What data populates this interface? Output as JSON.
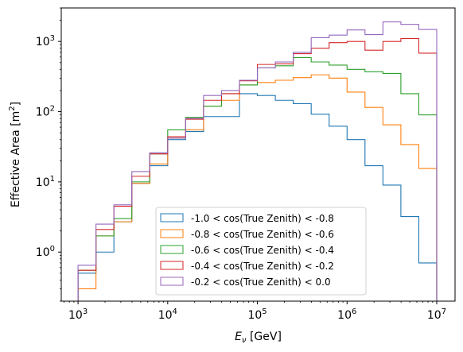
{
  "chart_data": {
    "type": "line",
    "style": "step",
    "x_scale": "log",
    "y_scale": "log",
    "xlim": [
      650,
      16000000
    ],
    "ylim": [
      0.2,
      3000
    ],
    "xlabel_main": "E",
    "xlabel_sub": "ν",
    "xlabel_unit": " [GeV]",
    "ylabel_main": "Effective Area [m",
    "ylabel_sup": "2",
    "ylabel_end": "]",
    "x_ticks": [
      {
        "value": 1000,
        "base": "10",
        "exp": "3"
      },
      {
        "value": 10000,
        "base": "10",
        "exp": "4"
      },
      {
        "value": 100000,
        "base": "10",
        "exp": "5"
      },
      {
        "value": 1000000,
        "base": "10",
        "exp": "6"
      },
      {
        "value": 10000000,
        "base": "10",
        "exp": "7"
      }
    ],
    "y_ticks": [
      {
        "value": 1,
        "base": "10",
        "exp": "0"
      },
      {
        "value": 10,
        "base": "10",
        "exp": "1"
      },
      {
        "value": 100,
        "base": "10",
        "exp": "2"
      },
      {
        "value": 1000,
        "base": "10",
        "exp": "3"
      }
    ],
    "bin_edges": [
      1000,
      1585,
      2512,
      3981,
      6310,
      10000,
      15849,
      25119,
      39811,
      63096,
      100000,
      158489,
      251189,
      398107,
      630957,
      1000000,
      1584893,
      2511886,
      3981072,
      6309573,
      10000000
    ],
    "legend_position": "lower center",
    "series": [
      {
        "name": "-1.0 < cos(True Zenith) < -0.8",
        "color": "#1f77b4",
        "values": [
          0.5,
          1.0,
          2.7,
          9.5,
          17,
          40,
          52,
          85,
          85,
          180,
          170,
          145,
          130,
          92,
          62,
          40,
          17,
          9,
          3.2,
          0.7
        ]
      },
      {
        "name": "-0.8 < cos(True Zenith) < -0.6",
        "color": "#ff7f0e",
        "values": [
          0.3,
          1.7,
          2.7,
          9.5,
          18,
          42,
          55,
          120,
          145,
          240,
          260,
          280,
          305,
          335,
          300,
          190,
          115,
          65,
          34,
          15.5
        ]
      },
      {
        "name": "-0.6 < cos(True Zenith) < -0.4",
        "color": "#2ca02c",
        "values": [
          0.55,
          1.7,
          3.0,
          10,
          25,
          55,
          83,
          120,
          180,
          240,
          420,
          450,
          590,
          510,
          460,
          400,
          370,
          350,
          180,
          90
        ]
      },
      {
        "name": "-0.4 < cos(True Zenith) < -0.2",
        "color": "#d62728",
        "values": [
          0.55,
          2.1,
          4.5,
          12,
          25,
          44,
          78,
          145,
          180,
          275,
          470,
          480,
          670,
          800,
          960,
          1000,
          750,
          1000,
          1100,
          680
        ]
      },
      {
        "name": "-0.2 < cos(True Zenith) < 0.0",
        "color": "#9467bd",
        "values": [
          0.65,
          2.5,
          4.7,
          14,
          26,
          42,
          80,
          170,
          200,
          280,
          420,
          510,
          700,
          1130,
          1230,
          1460,
          1250,
          1900,
          1750,
          1480
        ]
      }
    ]
  }
}
